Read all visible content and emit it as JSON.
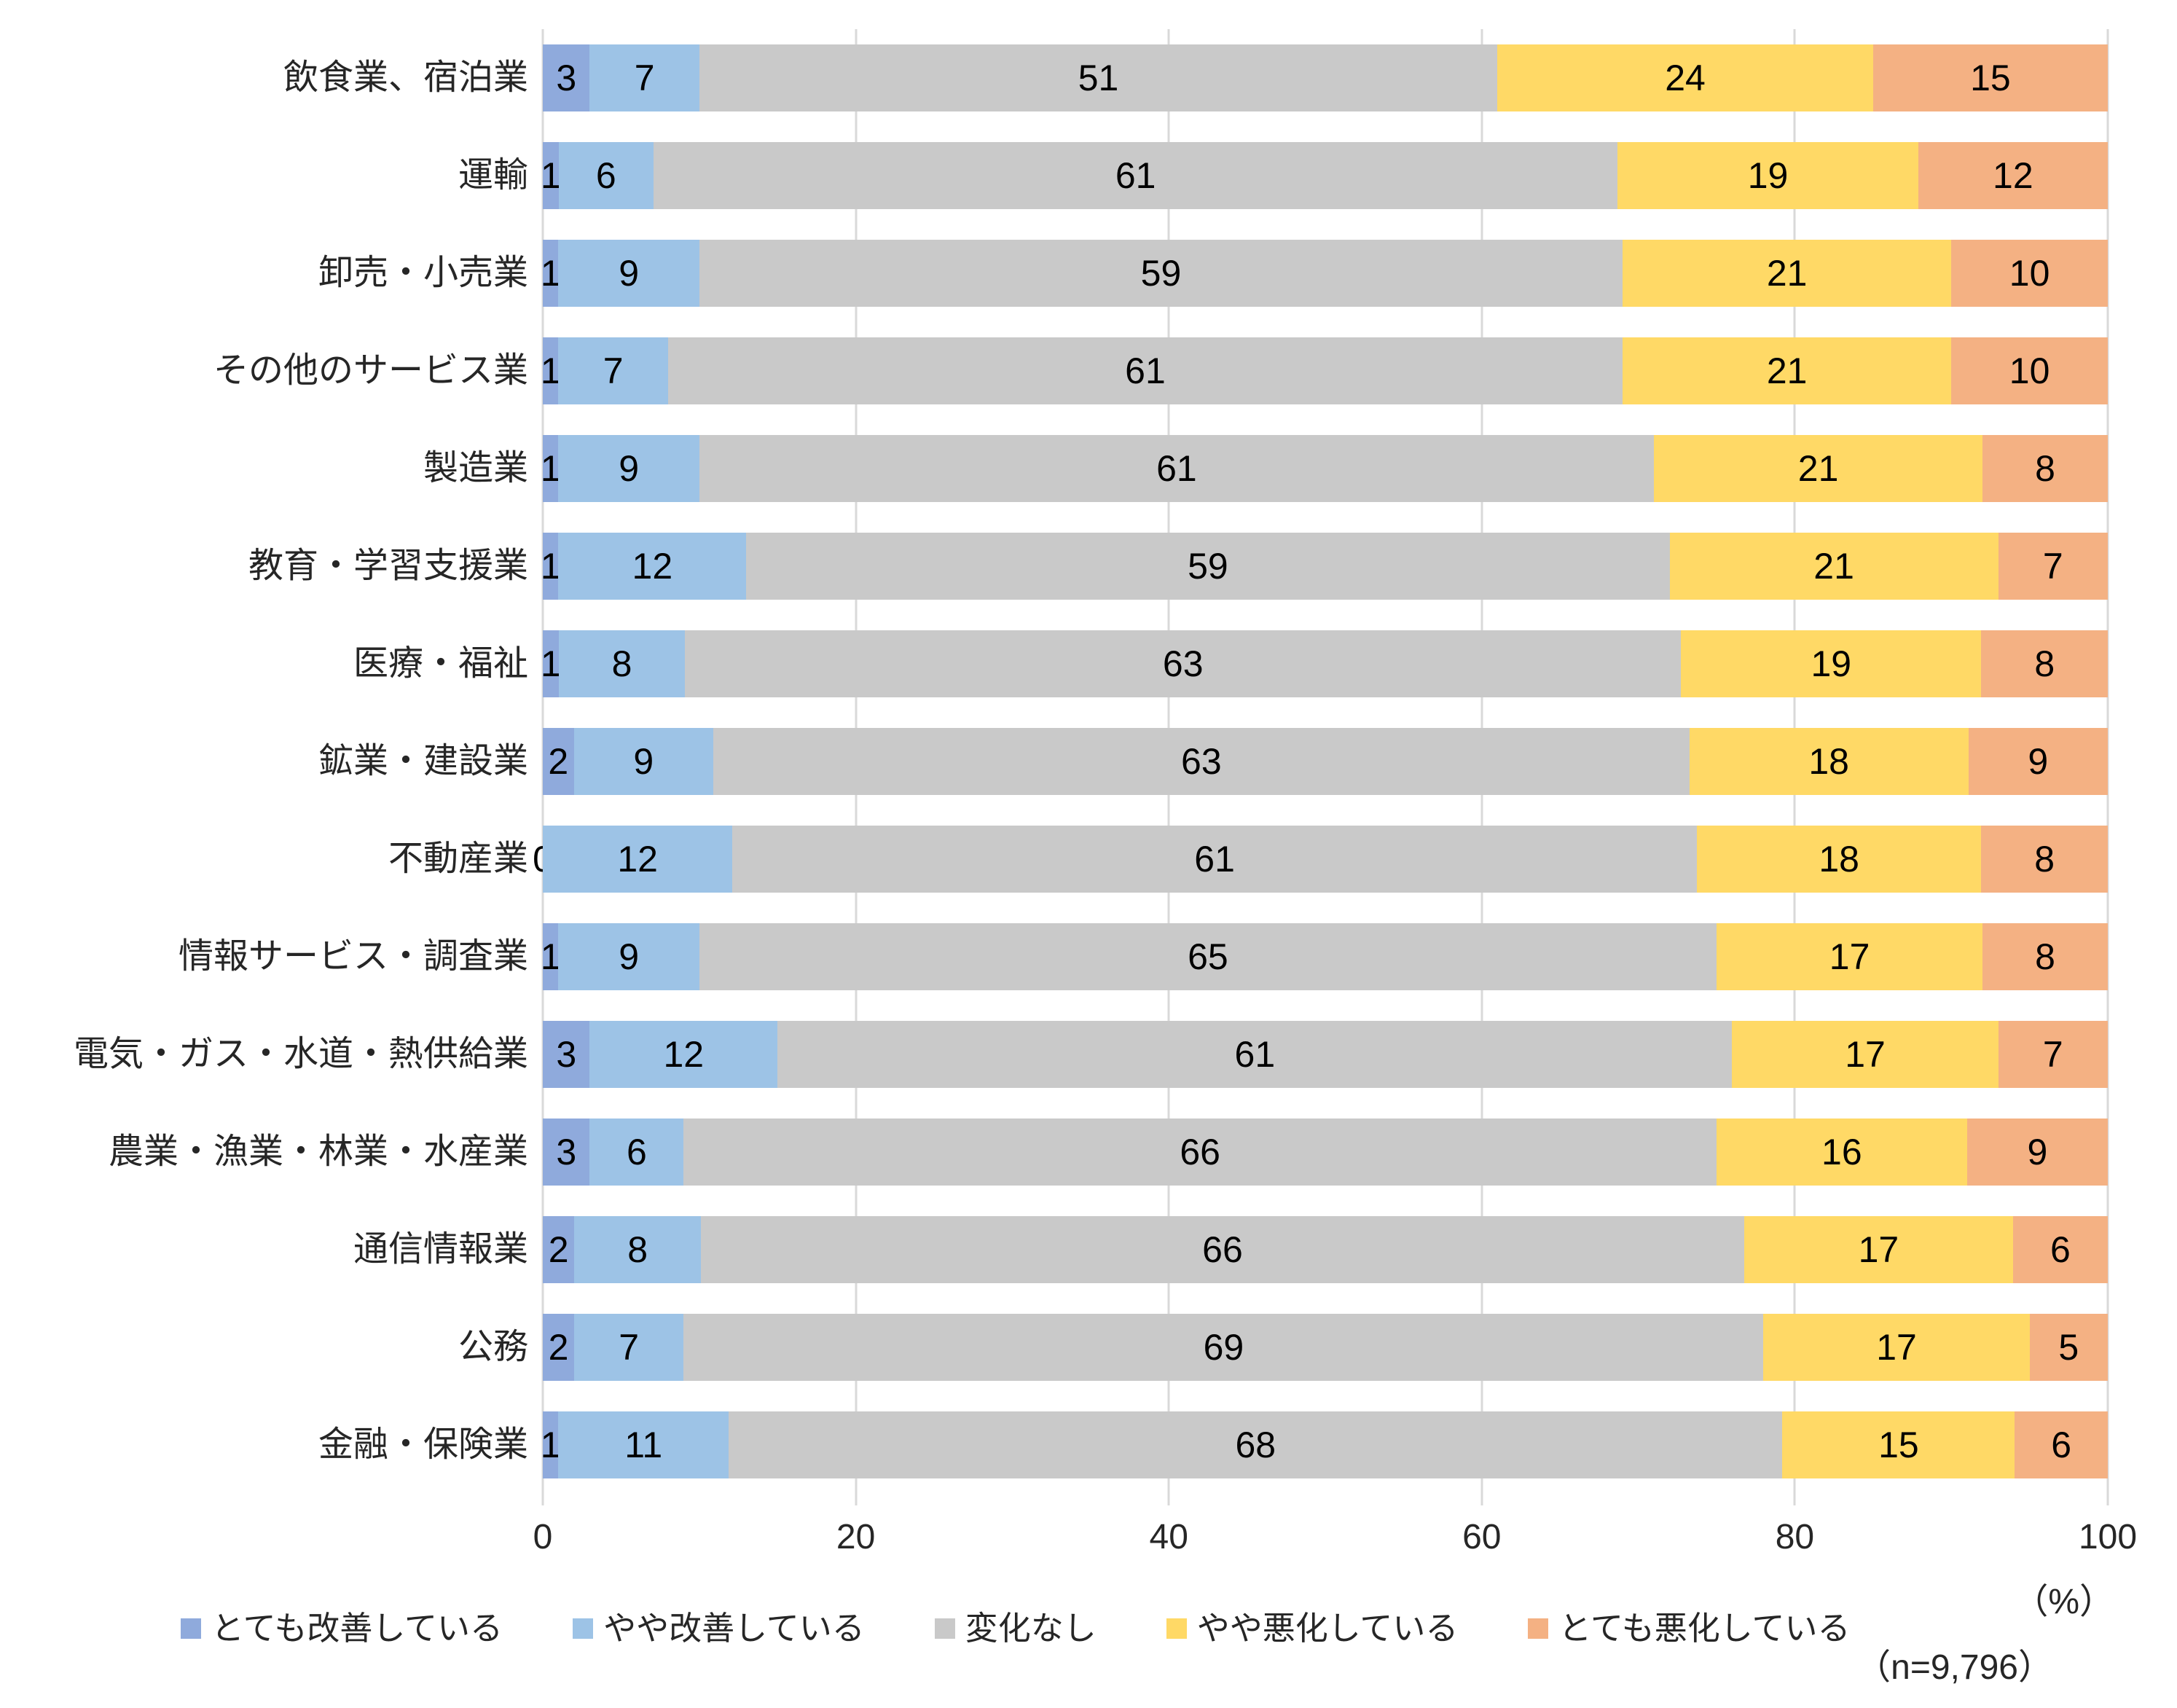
{
  "chart_data": {
    "type": "bar",
    "variant": "horizontal-stacked-100",
    "title": "",
    "categories": [
      "飲食業、宿泊業",
      "運輸",
      "卸売・小売業",
      "その他のサービス業",
      "製造業",
      "教育・学習支援業",
      "医療・福祉",
      "鉱業・建設業",
      "不動産業",
      "情報サービス・調査業",
      "電気・ガス・水道・熱供給業",
      "農業・漁業・林業・水産業",
      "通信情報業",
      "公務",
      "金融・保険業"
    ],
    "series": [
      {
        "name": "とても改善している",
        "color": "#8FAADC",
        "values": [
          3,
          1,
          1,
          1,
          1,
          1,
          1,
          2,
          0,
          1,
          3,
          3,
          2,
          2,
          1
        ]
      },
      {
        "name": "やや改善している",
        "color": "#9DC3E6",
        "values": [
          7,
          6,
          9,
          7,
          9,
          12,
          8,
          9,
          12,
          9,
          12,
          6,
          8,
          7,
          11
        ]
      },
      {
        "name": "変化なし",
        "color": "#C9C9C9",
        "values": [
          51,
          61,
          59,
          61,
          61,
          59,
          63,
          63,
          61,
          65,
          61,
          66,
          66,
          69,
          68
        ]
      },
      {
        "name": "やや悪化している",
        "color": "#FFD966",
        "values": [
          24,
          19,
          21,
          21,
          21,
          21,
          19,
          18,
          18,
          17,
          17,
          16,
          17,
          17,
          15
        ]
      },
      {
        "name": "とても悪化している",
        "color": "#F4B183",
        "values": [
          15,
          12,
          10,
          10,
          8,
          7,
          8,
          9,
          8,
          8,
          7,
          9,
          6,
          5,
          6
        ]
      }
    ],
    "x_axis": {
      "ticks": [
        0,
        20,
        40,
        60,
        80,
        100
      ],
      "range": [
        0,
        100
      ],
      "unit_label": "（%）"
    },
    "sample_note": "（n=9,796）",
    "legend_position": "bottom",
    "grid": true,
    "gridline_color": "#d9d9d9",
    "data_label_color": "#000000",
    "axis_text_color": "#262626"
  }
}
